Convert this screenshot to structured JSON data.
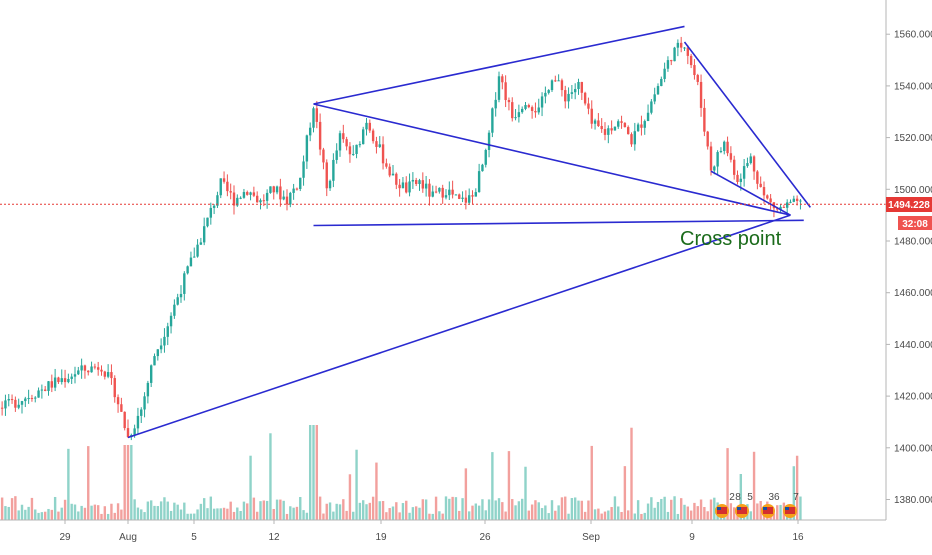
{
  "chart_data": {
    "type": "candlestick",
    "title": "",
    "xlabel": "",
    "ylabel": "",
    "x_ticks": [
      "29",
      "Aug",
      "5",
      "12",
      "19",
      "26",
      "Sep",
      "9",
      "16"
    ],
    "y_ticks": [
      "1380.000",
      "1400.000",
      "1420.000",
      "1440.000",
      "1460.000",
      "1480.000",
      "1500.000",
      "1520.000",
      "1540.000",
      "1560.000"
    ],
    "ylim": [
      1367,
      1578
    ],
    "grid": false,
    "last_price": "1494.228",
    "countdown": "32:08",
    "annotation": "Cross point",
    "event_badges": [
      "2",
      "8",
      "5",
      "36",
      "7"
    ],
    "colors": {
      "up": "#26a69a",
      "down": "#ef5350",
      "trendline": "#2a2ad0",
      "price_line": "#e53935",
      "annotation": "#1b6b1b",
      "volume_up": "#8fd3c9",
      "volume_down": "#f2a09d"
    },
    "price_path": [
      [
        0,
        1418
      ],
      [
        2,
        1423
      ],
      [
        4,
        1416
      ],
      [
        6,
        1421
      ],
      [
        8,
        1414
      ],
      [
        10,
        1419
      ],
      [
        12,
        1424
      ],
      [
        14,
        1429
      ],
      [
        16,
        1432
      ],
      [
        17,
        1422
      ],
      [
        18,
        1404
      ],
      [
        19,
        1415
      ],
      [
        20,
        1436
      ],
      [
        21,
        1448
      ],
      [
        22,
        1462
      ],
      [
        23,
        1475
      ],
      [
        24,
        1488
      ],
      [
        25,
        1502
      ],
      [
        26,
        1496
      ],
      [
        27,
        1500
      ],
      [
        28,
        1495
      ],
      [
        29,
        1500
      ],
      [
        30,
        1496
      ],
      [
        31,
        1504
      ],
      [
        32,
        1533
      ],
      [
        33,
        1500
      ],
      [
        34,
        1520
      ],
      [
        35,
        1512
      ],
      [
        36,
        1527
      ],
      [
        37,
        1515
      ],
      [
        38,
        1504
      ],
      [
        39,
        1500
      ],
      [
        40,
        1503
      ],
      [
        41,
        1497
      ],
      [
        42,
        1500
      ],
      [
        43,
        1495
      ],
      [
        44,
        1497
      ],
      [
        45,
        1513
      ],
      [
        46,
        1545
      ],
      [
        47,
        1528
      ],
      [
        48,
        1535
      ],
      [
        49,
        1530
      ],
      [
        50,
        1544
      ],
      [
        51,
        1536
      ],
      [
        52,
        1540
      ],
      [
        53,
        1525
      ],
      [
        54,
        1522
      ],
      [
        55,
        1527
      ],
      [
        56,
        1519
      ],
      [
        57,
        1528
      ],
      [
        58,
        1540
      ],
      [
        59,
        1552
      ],
      [
        60,
        1557
      ],
      [
        61,
        1540
      ],
      [
        62,
        1508
      ],
      [
        63,
        1518
      ],
      [
        64,
        1504
      ],
      [
        65,
        1512
      ],
      [
        66,
        1497
      ],
      [
        67,
        1492
      ],
      [
        68,
        1494
      ]
    ],
    "trendlines": [
      {
        "from": [
          18,
          1404
        ],
        "to": [
          68,
          1490
        ]
      },
      {
        "from": [
          32,
          1533
        ],
        "to": [
          68,
          1490
        ]
      },
      {
        "from": [
          32,
          1486
        ],
        "to": [
          69,
          1488
        ]
      },
      {
        "from": [
          32,
          1533
        ],
        "to": [
          60,
          1563
        ]
      },
      {
        "from": [
          60,
          1557
        ],
        "to": [
          69.5,
          1493
        ]
      },
      {
        "from": [
          62,
          1507
        ],
        "to": [
          68,
          1490
        ]
      }
    ]
  }
}
